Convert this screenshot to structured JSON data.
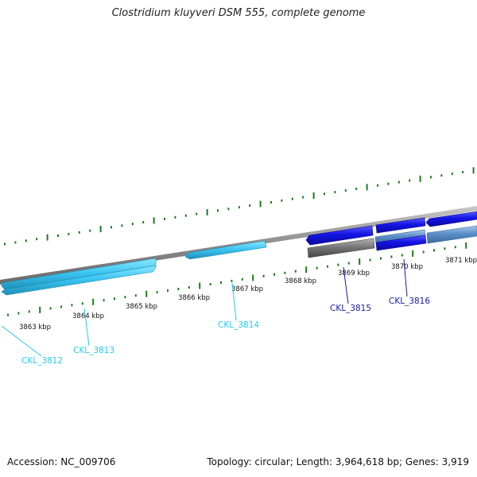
{
  "title": "Clostridium kluyveri DSM 555, complete genome",
  "footer": {
    "accession": "Accession: NC_009706",
    "summary": "Topology: circular; Length: 3,964,618 bp; Genes: 3,919"
  },
  "ruler_labels": [
    "3863 kbp",
    "3864 kbp",
    "3865 kbp",
    "3866 kbp",
    "3867 kbp",
    "3868 kbp",
    "3869 kbp",
    "3870 kbp",
    "3871 kbp"
  ],
  "genes": [
    {
      "label": "CKL_3812",
      "color": "#29c8f0"
    },
    {
      "label": "CKL_3813",
      "color": "#29c8f0"
    },
    {
      "label": "CKL_3814",
      "color": "#29c8f0"
    },
    {
      "label": "CKL_3815",
      "color": "#1a1aa6"
    },
    {
      "label": "CKL_3816",
      "color": "#1a1aa6"
    }
  ],
  "colors": {
    "backbone": "#8a8a8a",
    "ticks": "#1e7a1e",
    "gene_light": "#3cc6f2",
    "gene_blue": "#1414e6",
    "gene_grey": "#6e6e6e",
    "gene_steel": "#5b8fc8"
  }
}
